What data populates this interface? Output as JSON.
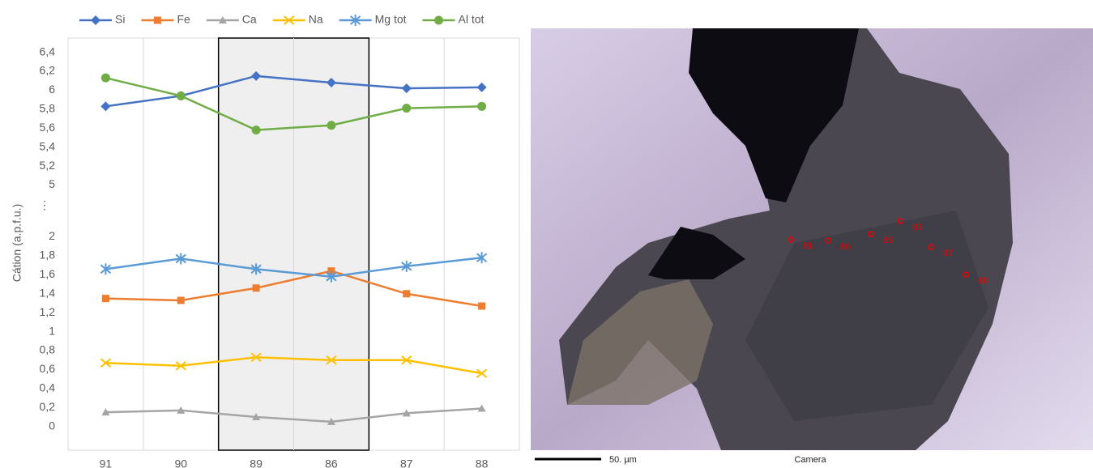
{
  "chart_data": {
    "type": "line",
    "y_label": "Cátion (a.p.f.u.)",
    "categories": [
      "91",
      "90",
      "89",
      "86",
      "87",
      "88"
    ],
    "series": [
      {
        "name": "Si",
        "color": "#4472c4",
        "marker": "diamond",
        "values": [
          5.83,
          5.94,
          6.15,
          6.08,
          6.02,
          6.03
        ]
      },
      {
        "name": "Fe",
        "color": "#ed7d31",
        "marker": "square",
        "values": [
          1.35,
          1.33,
          1.46,
          1.64,
          1.4,
          1.27
        ]
      },
      {
        "name": "Ca",
        "color": "#a5a5a5",
        "marker": "triangle",
        "values": [
          0.15,
          0.17,
          0.1,
          0.05,
          0.14,
          0.19
        ]
      },
      {
        "name": "Na",
        "color": "#ffc000",
        "marker": "x",
        "values": [
          0.67,
          0.64,
          0.73,
          0.7,
          0.7,
          0.56
        ]
      },
      {
        "name": "Mg tot",
        "color": "#5b9bd5",
        "marker": "star",
        "values": [
          1.66,
          1.77,
          1.66,
          1.58,
          1.69,
          1.78
        ]
      },
      {
        "name": "Al tot",
        "color": "#70ad47",
        "marker": "circle",
        "values": [
          6.13,
          5.94,
          5.58,
          5.63,
          5.81,
          5.83
        ]
      }
    ],
    "ylim": [
      -0.25,
      6.55
    ],
    "axis_break": {
      "from": 2,
      "to": 5,
      "label": "⋮"
    },
    "yticks": [
      0,
      {
        "value": 0.2,
        "label": "0,2"
      },
      {
        "value": 0.4,
        "label": "0,4"
      },
      {
        "value": 0.6,
        "label": "0,6"
      },
      {
        "value": 0.8,
        "label": "0,8"
      },
      1,
      {
        "value": 1.2,
        "label": "1,2"
      },
      {
        "value": 1.4,
        "label": "1,4"
      },
      {
        "value": 1.6,
        "label": "1,6"
      },
      {
        "value": 1.8,
        "label": "1,8"
      },
      2,
      5,
      {
        "value": 5.2,
        "label": "5,2"
      },
      {
        "value": 5.4,
        "label": "5,4"
      },
      {
        "value": 5.6,
        "label": "5,6"
      },
      {
        "value": 5.8,
        "label": "5,8"
      },
      6,
      {
        "value": 6.2,
        "label": "6,2"
      },
      {
        "value": 6.4,
        "label": "6,4"
      }
    ],
    "highlight": [
      2,
      3
    ],
    "grid": true,
    "legend": "top"
  },
  "micrograph": {
    "point_labels": [
      "91",
      "90",
      "89",
      "86",
      "87",
      "88"
    ],
    "scale_label": "50. µm",
    "caption": "Camera"
  }
}
